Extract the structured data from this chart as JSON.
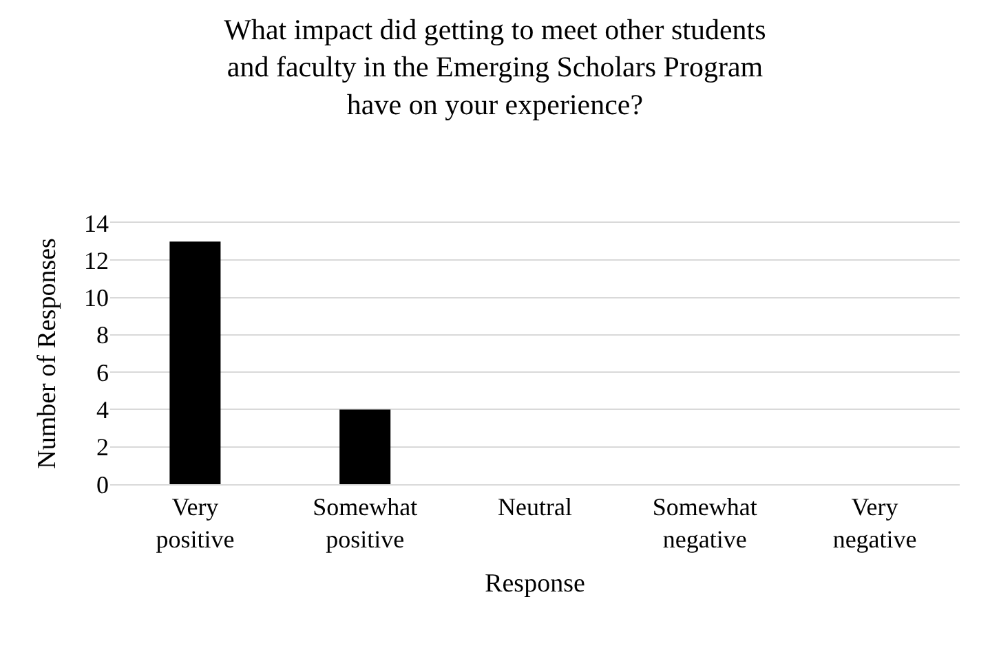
{
  "chart_data": {
    "type": "bar",
    "title": "What impact did getting to meet other students and faculty in the Emerging Scholars Program have on your experience?",
    "xlabel": "Response",
    "ylabel": "Number of Responses",
    "categories": [
      "Very positive",
      "Somewhat positive",
      "Neutral",
      "Somewhat negative",
      "Very negative"
    ],
    "values": [
      13,
      4,
      0,
      0,
      0
    ],
    "color": "#000000",
    "ylim": [
      0,
      14
    ],
    "yticks": [
      0,
      2,
      4,
      6,
      8,
      10,
      12,
      14
    ],
    "grid": "y"
  }
}
